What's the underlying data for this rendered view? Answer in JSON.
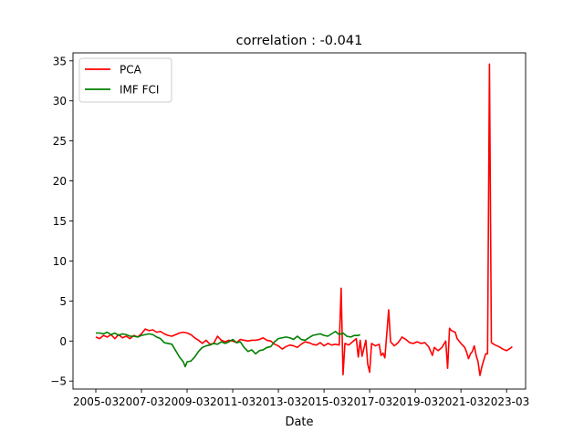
{
  "chart_data": {
    "type": "line",
    "title": "correlation : -0.041",
    "xlabel": "Date",
    "ylabel": "",
    "xlim": [
      "2004-03",
      "2024-01"
    ],
    "ylim": [
      -6,
      36
    ],
    "xticks": [
      "2005-03",
      "2007-03",
      "2009-03",
      "2011-03",
      "2013-03",
      "2015-03",
      "2017-03",
      "2019-03",
      "2021-03",
      "2023-03"
    ],
    "yticks": [
      -5,
      0,
      5,
      10,
      15,
      20,
      25,
      30,
      35
    ],
    "legend_position": "top-left",
    "grid": false,
    "series": [
      {
        "name": "PCA",
        "color": "#ff0000",
        "points": [
          [
            "2005-03",
            0.5
          ],
          [
            "2005-05",
            0.3
          ],
          [
            "2005-07",
            0.7
          ],
          [
            "2005-09",
            0.5
          ],
          [
            "2005-11",
            0.8
          ],
          [
            "2006-01",
            0.3
          ],
          [
            "2006-03",
            0.8
          ],
          [
            "2006-05",
            0.4
          ],
          [
            "2006-07",
            0.6
          ],
          [
            "2006-09",
            0.3
          ],
          [
            "2006-11",
            0.7
          ],
          [
            "2007-01",
            0.5
          ],
          [
            "2007-03",
            0.9
          ],
          [
            "2007-05",
            1.5
          ],
          [
            "2007-07",
            1.3
          ],
          [
            "2007-09",
            1.4
          ],
          [
            "2007-11",
            1.1
          ],
          [
            "2008-01",
            1.2
          ],
          [
            "2008-03",
            0.9
          ],
          [
            "2008-05",
            0.7
          ],
          [
            "2008-07",
            0.6
          ],
          [
            "2008-09",
            0.8
          ],
          [
            "2008-11",
            1.0
          ],
          [
            "2009-01",
            1.1
          ],
          [
            "2009-03",
            1.0
          ],
          [
            "2009-05",
            0.8
          ],
          [
            "2009-07",
            0.4
          ],
          [
            "2009-09",
            0.1
          ],
          [
            "2009-11",
            -0.3
          ],
          [
            "2010-01",
            0.1
          ],
          [
            "2010-03",
            -0.4
          ],
          [
            "2010-05",
            -0.3
          ],
          [
            "2010-07",
            0.6
          ],
          [
            "2010-09",
            0.1
          ],
          [
            "2010-11",
            -0.1
          ],
          [
            "2011-01",
            0.1
          ],
          [
            "2011-03",
            0.0
          ],
          [
            "2011-05",
            -0.2
          ],
          [
            "2011-07",
            0.2
          ],
          [
            "2011-09",
            0.1
          ],
          [
            "2011-11",
            0.0
          ],
          [
            "2012-01",
            0.1
          ],
          [
            "2012-03",
            0.1
          ],
          [
            "2012-05",
            0.2
          ],
          [
            "2012-07",
            0.4
          ],
          [
            "2012-09",
            0.1
          ],
          [
            "2012-11",
            0.0
          ],
          [
            "2013-01",
            -0.4
          ],
          [
            "2013-03",
            -0.6
          ],
          [
            "2013-05",
            -1.0
          ],
          [
            "2013-07",
            -0.7
          ],
          [
            "2013-09",
            -0.5
          ],
          [
            "2013-11",
            -0.6
          ],
          [
            "2014-01",
            -0.8
          ],
          [
            "2014-03",
            -0.4
          ],
          [
            "2014-05",
            -0.1
          ],
          [
            "2014-07",
            -0.2
          ],
          [
            "2014-09",
            -0.4
          ],
          [
            "2014-11",
            -0.5
          ],
          [
            "2015-01",
            -0.2
          ],
          [
            "2015-03",
            -0.6
          ],
          [
            "2015-05",
            -0.3
          ],
          [
            "2015-07",
            -0.5
          ],
          [
            "2015-09",
            -0.4
          ],
          [
            "2015-11",
            -0.5
          ],
          [
            "2015-12",
            6.6
          ],
          [
            "2016-01",
            -4.2
          ],
          [
            "2016-02",
            -0.3
          ],
          [
            "2016-04",
            -0.5
          ],
          [
            "2016-06",
            -0.1
          ],
          [
            "2016-08",
            0.3
          ],
          [
            "2016-09",
            -2.0
          ],
          [
            "2016-10",
            0.1
          ],
          [
            "2016-11",
            -1.9
          ],
          [
            "2017-01",
            0.1
          ],
          [
            "2017-02",
            -2.9
          ],
          [
            "2017-03",
            -3.9
          ],
          [
            "2017-04",
            -0.3
          ],
          [
            "2017-06",
            -0.6
          ],
          [
            "2017-08",
            -0.4
          ],
          [
            "2017-09",
            -1.8
          ],
          [
            "2017-10",
            -1.5
          ],
          [
            "2017-11",
            -2.1
          ],
          [
            "2018-01",
            3.9
          ],
          [
            "2018-02",
            -0.1
          ],
          [
            "2018-04",
            -0.6
          ],
          [
            "2018-06",
            -0.2
          ],
          [
            "2018-08",
            0.5
          ],
          [
            "2018-10",
            0.2
          ],
          [
            "2018-12",
            -0.2
          ],
          [
            "2019-02",
            -0.3
          ],
          [
            "2019-04",
            -0.1
          ],
          [
            "2019-06",
            -0.3
          ],
          [
            "2019-08",
            -0.2
          ],
          [
            "2019-10",
            -0.7
          ],
          [
            "2019-12",
            -1.8
          ],
          [
            "2020-01",
            -0.8
          ],
          [
            "2020-03",
            -1.2
          ],
          [
            "2020-05",
            -0.8
          ],
          [
            "2020-07",
            0.0
          ],
          [
            "2020-08",
            -3.4
          ],
          [
            "2020-09",
            1.6
          ],
          [
            "2020-10",
            1.3
          ],
          [
            "2020-12",
            1.1
          ],
          [
            "2021-01",
            0.3
          ],
          [
            "2021-03",
            -0.3
          ],
          [
            "2021-05",
            -0.8
          ],
          [
            "2021-06",
            -1.4
          ],
          [
            "2021-07",
            -2.2
          ],
          [
            "2021-08",
            -1.6
          ],
          [
            "2021-09",
            -1.3
          ],
          [
            "2021-10",
            -0.6
          ],
          [
            "2021-11",
            -1.8
          ],
          [
            "2021-12",
            -2.6
          ],
          [
            "2022-01",
            -4.3
          ],
          [
            "2022-02",
            -3.2
          ],
          [
            "2022-04",
            -1.6
          ],
          [
            "2022-05",
            -1.6
          ],
          [
            "2022-06",
            34.6
          ],
          [
            "2022-07",
            -0.2
          ],
          [
            "2022-09",
            -0.5
          ],
          [
            "2022-11",
            -0.7
          ],
          [
            "2023-01",
            -1.0
          ],
          [
            "2023-03",
            -1.2
          ],
          [
            "2023-05",
            -0.9
          ],
          [
            "2023-06",
            -0.7
          ]
        ]
      },
      {
        "name": "IMF FCI",
        "color": "#008000",
        "points": [
          [
            "2005-03",
            1.0
          ],
          [
            "2005-05",
            1.0
          ],
          [
            "2005-07",
            0.9
          ],
          [
            "2005-09",
            1.1
          ],
          [
            "2005-11",
            0.8
          ],
          [
            "2006-01",
            1.0
          ],
          [
            "2006-03",
            0.7
          ],
          [
            "2006-05",
            0.9
          ],
          [
            "2006-07",
            0.8
          ],
          [
            "2006-09",
            0.6
          ],
          [
            "2006-11",
            0.6
          ],
          [
            "2007-01",
            0.5
          ],
          [
            "2007-03",
            0.7
          ],
          [
            "2007-05",
            0.8
          ],
          [
            "2007-07",
            0.9
          ],
          [
            "2007-09",
            0.8
          ],
          [
            "2007-11",
            0.5
          ],
          [
            "2008-01",
            0.3
          ],
          [
            "2008-03",
            -0.2
          ],
          [
            "2008-05",
            -0.3
          ],
          [
            "2008-07",
            -0.4
          ],
          [
            "2008-09",
            -1.2
          ],
          [
            "2008-11",
            -2.0
          ],
          [
            "2009-01",
            -2.6
          ],
          [
            "2009-02",
            -3.2
          ],
          [
            "2009-03",
            -2.6
          ],
          [
            "2009-05",
            -2.5
          ],
          [
            "2009-07",
            -2.0
          ],
          [
            "2009-09",
            -1.3
          ],
          [
            "2009-11",
            -0.8
          ],
          [
            "2010-01",
            -0.6
          ],
          [
            "2010-03",
            -0.5
          ],
          [
            "2010-05",
            -0.3
          ],
          [
            "2010-07",
            -0.4
          ],
          [
            "2010-09",
            -0.1
          ],
          [
            "2010-11",
            -0.3
          ],
          [
            "2011-01",
            -0.1
          ],
          [
            "2011-03",
            0.2
          ],
          [
            "2011-05",
            -0.2
          ],
          [
            "2011-07",
            -0.1
          ],
          [
            "2011-09",
            -0.8
          ],
          [
            "2011-11",
            -1.3
          ],
          [
            "2012-01",
            -1.1
          ],
          [
            "2012-03",
            -1.6
          ],
          [
            "2012-05",
            -1.2
          ],
          [
            "2012-07",
            -1.1
          ],
          [
            "2012-09",
            -0.8
          ],
          [
            "2012-11",
            -0.7
          ],
          [
            "2013-01",
            -0.1
          ],
          [
            "2013-03",
            0.3
          ],
          [
            "2013-05",
            0.4
          ],
          [
            "2013-07",
            0.5
          ],
          [
            "2013-09",
            0.4
          ],
          [
            "2013-11",
            0.2
          ],
          [
            "2014-01",
            0.6
          ],
          [
            "2014-03",
            0.2
          ],
          [
            "2014-05",
            0.1
          ],
          [
            "2014-07",
            0.4
          ],
          [
            "2014-09",
            0.7
          ],
          [
            "2014-11",
            0.8
          ],
          [
            "2015-01",
            0.9
          ],
          [
            "2015-03",
            0.7
          ],
          [
            "2015-05",
            0.6
          ],
          [
            "2015-07",
            0.9
          ],
          [
            "2015-09",
            1.2
          ],
          [
            "2015-11",
            0.8
          ],
          [
            "2016-01",
            1.0
          ],
          [
            "2016-03",
            0.6
          ],
          [
            "2016-05",
            0.5
          ],
          [
            "2016-07",
            0.7
          ],
          [
            "2016-09",
            0.7
          ],
          [
            "2016-10",
            0.8
          ]
        ]
      }
    ]
  }
}
